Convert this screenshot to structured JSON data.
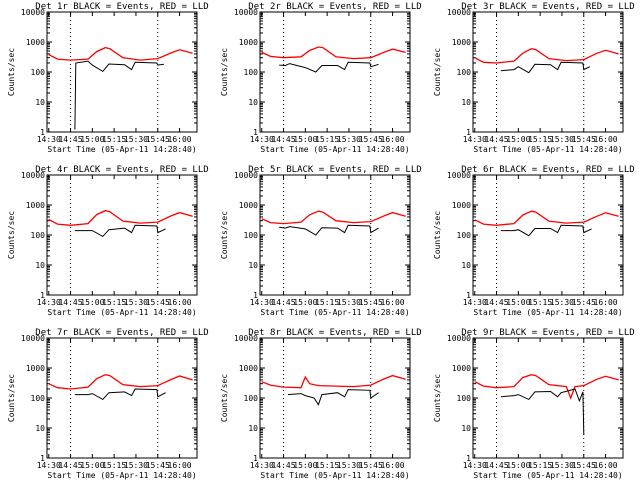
{
  "chart_data": [
    {
      "title": "Det 1r BLACK = Events, RED = LLD",
      "xlabel": "Start Time (05-Apr-11 14:28:40)",
      "ylabel": "Counts/sec",
      "events": [
        [
          14.8,
          1.2
        ],
        [
          14.81,
          200
        ],
        [
          14.95,
          230
        ],
        [
          15.0,
          170
        ],
        [
          15.12,
          105
        ],
        [
          15.19,
          185
        ],
        [
          15.37,
          175
        ],
        [
          15.45,
          120
        ],
        [
          15.49,
          210
        ],
        [
          15.74,
          200
        ],
        [
          15.75,
          170
        ],
        [
          15.82,
          180
        ]
      ],
      "lld": [
        [
          14.5,
          380
        ],
        [
          14.6,
          270
        ],
        [
          14.75,
          250
        ],
        [
          14.95,
          270
        ],
        [
          15.05,
          480
        ],
        [
          15.15,
          650
        ],
        [
          15.2,
          600
        ],
        [
          15.35,
          300
        ],
        [
          15.55,
          250
        ],
        [
          15.75,
          280
        ],
        [
          15.9,
          430
        ],
        [
          16.0,
          550
        ],
        [
          16.15,
          420
        ]
      ]
    },
    {
      "title": "Det 2r BLACK = Events, RED = LLD",
      "xlabel": "Start Time (05-Apr-11 14:28:40)",
      "ylabel": "Counts/sec",
      "events": [
        [
          14.7,
          170
        ],
        [
          14.77,
          165
        ],
        [
          14.82,
          190
        ],
        [
          15.0,
          140
        ],
        [
          15.12,
          100
        ],
        [
          15.19,
          165
        ],
        [
          15.37,
          165
        ],
        [
          15.45,
          120
        ],
        [
          15.49,
          210
        ],
        [
          15.74,
          200
        ],
        [
          15.75,
          150
        ],
        [
          15.84,
          180
        ]
      ],
      "lld": [
        [
          14.5,
          450
        ],
        [
          14.6,
          330
        ],
        [
          14.75,
          300
        ],
        [
          14.95,
          320
        ],
        [
          15.05,
          520
        ],
        [
          15.15,
          680
        ],
        [
          15.2,
          650
        ],
        [
          15.35,
          320
        ],
        [
          15.55,
          280
        ],
        [
          15.75,
          300
        ],
        [
          15.9,
          450
        ],
        [
          16.0,
          580
        ],
        [
          16.15,
          450
        ]
      ]
    },
    {
      "title": "Det 3r BLACK = Events, RED = LLD",
      "xlabel": "Start Time (05-Apr-11 14:28:40)",
      "ylabel": "Counts/sec",
      "events": [
        [
          14.8,
          110
        ],
        [
          14.95,
          120
        ],
        [
          15.0,
          150
        ],
        [
          15.12,
          95
        ],
        [
          15.19,
          180
        ],
        [
          15.37,
          175
        ],
        [
          15.45,
          120
        ],
        [
          15.49,
          210
        ],
        [
          15.74,
          200
        ],
        [
          15.75,
          120
        ],
        [
          15.82,
          150
        ]
      ],
      "lld": [
        [
          14.5,
          300
        ],
        [
          14.6,
          210
        ],
        [
          14.75,
          200
        ],
        [
          14.95,
          230
        ],
        [
          15.05,
          420
        ],
        [
          15.15,
          600
        ],
        [
          15.2,
          560
        ],
        [
          15.35,
          280
        ],
        [
          15.55,
          240
        ],
        [
          15.75,
          260
        ],
        [
          15.9,
          420
        ],
        [
          16.0,
          530
        ],
        [
          16.15,
          400
        ]
      ]
    },
    {
      "title": "Det 4r BLACK = Events, RED = LLD",
      "xlabel": "Start Time (05-Apr-11 14:28:40)",
      "ylabel": "Counts/sec",
      "events": [
        [
          14.8,
          140
        ],
        [
          14.95,
          140
        ],
        [
          15.0,
          140
        ],
        [
          15.12,
          90
        ],
        [
          15.19,
          150
        ],
        [
          15.37,
          170
        ],
        [
          15.45,
          120
        ],
        [
          15.49,
          210
        ],
        [
          15.74,
          200
        ],
        [
          15.75,
          120
        ],
        [
          15.84,
          160
        ]
      ],
      "lld": [
        [
          14.5,
          330
        ],
        [
          14.6,
          230
        ],
        [
          14.75,
          210
        ],
        [
          14.95,
          240
        ],
        [
          15.05,
          480
        ],
        [
          15.15,
          650
        ],
        [
          15.2,
          600
        ],
        [
          15.35,
          290
        ],
        [
          15.55,
          250
        ],
        [
          15.75,
          270
        ],
        [
          15.9,
          430
        ],
        [
          16.0,
          560
        ],
        [
          16.15,
          420
        ]
      ]
    },
    {
      "title": "Det 5r BLACK = Events, RED = LLD",
      "xlabel": "Start Time (05-Apr-11 14:28:40)",
      "ylabel": "Counts/sec",
      "events": [
        [
          14.7,
          180
        ],
        [
          14.77,
          170
        ],
        [
          14.82,
          190
        ],
        [
          15.0,
          160
        ],
        [
          15.12,
          100
        ],
        [
          15.19,
          175
        ],
        [
          15.37,
          170
        ],
        [
          15.45,
          120
        ],
        [
          15.49,
          210
        ],
        [
          15.74,
          200
        ],
        [
          15.75,
          120
        ],
        [
          15.84,
          170
        ]
      ],
      "lld": [
        [
          14.5,
          350
        ],
        [
          14.6,
          260
        ],
        [
          14.75,
          240
        ],
        [
          14.95,
          270
        ],
        [
          15.05,
          470
        ],
        [
          15.15,
          620
        ],
        [
          15.2,
          580
        ],
        [
          15.35,
          300
        ],
        [
          15.55,
          260
        ],
        [
          15.75,
          280
        ],
        [
          15.9,
          430
        ],
        [
          16.0,
          560
        ],
        [
          16.15,
          420
        ]
      ]
    },
    {
      "title": "Det 6r BLACK = Events, RED = LLD",
      "xlabel": "Start Time (05-Apr-11 14:28:40)",
      "ylabel": "Counts/sec",
      "events": [
        [
          14.8,
          140
        ],
        [
          14.95,
          140
        ],
        [
          15.0,
          150
        ],
        [
          15.12,
          95
        ],
        [
          15.19,
          165
        ],
        [
          15.37,
          165
        ],
        [
          15.45,
          120
        ],
        [
          15.49,
          210
        ],
        [
          15.74,
          200
        ],
        [
          15.75,
          120
        ],
        [
          15.84,
          160
        ]
      ],
      "lld": [
        [
          14.5,
          320
        ],
        [
          14.6,
          230
        ],
        [
          14.75,
          210
        ],
        [
          14.95,
          240
        ],
        [
          15.05,
          460
        ],
        [
          15.15,
          620
        ],
        [
          15.2,
          580
        ],
        [
          15.35,
          290
        ],
        [
          15.55,
          250
        ],
        [
          15.75,
          270
        ],
        [
          15.9,
          420
        ],
        [
          16.0,
          550
        ],
        [
          16.15,
          420
        ]
      ]
    },
    {
      "title": "Det 7r BLACK = Events, RED = LLD",
      "xlabel": "Start Time (05-Apr-11 14:28:40)",
      "ylabel": "Counts/sec",
      "events": [
        [
          14.8,
          130
        ],
        [
          14.95,
          130
        ],
        [
          15.0,
          140
        ],
        [
          15.12,
          90
        ],
        [
          15.19,
          150
        ],
        [
          15.37,
          160
        ],
        [
          15.45,
          120
        ],
        [
          15.49,
          200
        ],
        [
          15.74,
          190
        ],
        [
          15.75,
          110
        ],
        [
          15.84,
          150
        ]
      ],
      "lld": [
        [
          14.5,
          300
        ],
        [
          14.6,
          220
        ],
        [
          14.75,
          200
        ],
        [
          14.95,
          230
        ],
        [
          15.05,
          440
        ],
        [
          15.15,
          600
        ],
        [
          15.2,
          560
        ],
        [
          15.35,
          280
        ],
        [
          15.55,
          240
        ],
        [
          15.75,
          260
        ],
        [
          15.9,
          410
        ],
        [
          16.0,
          540
        ],
        [
          16.15,
          400
        ]
      ]
    },
    {
      "title": "Det 8r BLACK = Events, RED = LLD",
      "xlabel": "Start Time (05-Apr-11 14:28:40)",
      "ylabel": "Counts/sec",
      "events": [
        [
          14.8,
          130
        ],
        [
          14.95,
          140
        ],
        [
          15.0,
          120
        ],
        [
          15.1,
          100
        ],
        [
          15.15,
          60
        ],
        [
          15.19,
          130
        ],
        [
          15.37,
          150
        ],
        [
          15.45,
          110
        ],
        [
          15.49,
          190
        ],
        [
          15.74,
          180
        ],
        [
          15.75,
          100
        ],
        [
          15.84,
          150
        ]
      ],
      "lld": [
        [
          14.5,
          350
        ],
        [
          14.6,
          270
        ],
        [
          14.75,
          230
        ],
        [
          14.95,
          220
        ],
        [
          15.0,
          500
        ],
        [
          15.05,
          300
        ],
        [
          15.15,
          260
        ],
        [
          15.35,
          250
        ],
        [
          15.55,
          240
        ],
        [
          15.75,
          270
        ],
        [
          15.9,
          430
        ],
        [
          16.0,
          560
        ],
        [
          16.15,
          420
        ]
      ]
    },
    {
      "title": "Det 9r BLACK = Events, RED = LLD",
      "xlabel": "Start Time (05-Apr-11 14:28:40)",
      "ylabel": "Counts/sec",
      "events": [
        [
          14.8,
          110
        ],
        [
          14.95,
          120
        ],
        [
          15.0,
          130
        ],
        [
          15.12,
          90
        ],
        [
          15.19,
          160
        ],
        [
          15.37,
          165
        ],
        [
          15.45,
          110
        ],
        [
          15.49,
          150
        ],
        [
          15.65,
          200
        ],
        [
          15.7,
          80
        ],
        [
          15.74,
          160
        ],
        [
          15.75,
          6
        ]
      ],
      "lld": [
        [
          14.5,
          350
        ],
        [
          14.6,
          250
        ],
        [
          14.75,
          220
        ],
        [
          14.95,
          240
        ],
        [
          15.05,
          480
        ],
        [
          15.15,
          600
        ],
        [
          15.2,
          560
        ],
        [
          15.35,
          280
        ],
        [
          15.55,
          240
        ],
        [
          15.6,
          100
        ],
        [
          15.65,
          240
        ],
        [
          15.75,
          260
        ],
        [
          15.9,
          420
        ],
        [
          16.0,
          530
        ],
        [
          16.15,
          400
        ]
      ]
    }
  ],
  "shared_axes": {
    "xticks": [
      {
        "v": 14.5,
        "t": "14:30"
      },
      {
        "v": 14.75,
        "t": "14:45"
      },
      {
        "v": 15.0,
        "t": "15:00"
      },
      {
        "v": 15.25,
        "t": "15:15"
      },
      {
        "v": 15.5,
        "t": "15:30"
      },
      {
        "v": 15.75,
        "t": "15:45"
      },
      {
        "v": 16.0,
        "t": "16:00"
      }
    ],
    "yticks": [
      {
        "v": 1,
        "t": "1"
      },
      {
        "v": 10,
        "t": "10"
      },
      {
        "v": 100,
        "t": "100"
      },
      {
        "v": 1000,
        "t": "1000"
      },
      {
        "v": 10000,
        "t": "10000"
      }
    ],
    "xlim": [
      14.48,
      16.2
    ],
    "ylim": [
      1,
      10000
    ],
    "yscale": "log",
    "vlines": [
      14.75,
      15.75
    ],
    "events_color": "#000000",
    "lld_color": "#ff0000"
  }
}
